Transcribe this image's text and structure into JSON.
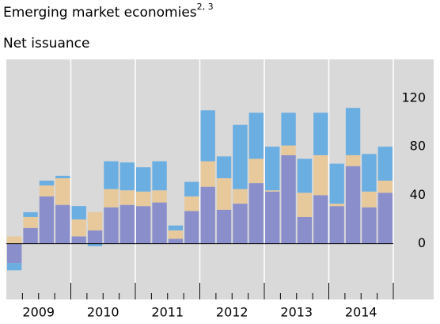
{
  "chart_data": {
    "type": "stacked_bar",
    "title": "Emerging market economies",
    "title_superscript": "2, 3",
    "subtitle": "Net issuance",
    "categories": [
      null,
      null,
      null,
      null,
      null,
      null,
      null,
      null,
      null,
      null,
      null,
      null,
      null,
      null,
      null,
      null,
      null,
      null,
      null,
      null,
      null,
      null,
      null,
      null
    ],
    "year_labels": [
      "2009",
      "2010",
      "2011",
      "2012",
      "2013",
      "2014"
    ],
    "series": [
      {
        "color": "#8a8fcb",
        "values": [
          -16,
          13,
          39,
          32,
          6,
          11,
          30,
          32,
          31,
          34,
          4,
          27,
          47,
          28,
          33,
          50,
          43,
          73,
          22,
          40,
          31,
          64,
          30,
          42
        ]
      },
      {
        "color": "#e8c99b",
        "values": [
          6,
          9,
          9,
          22,
          14,
          15,
          15,
          12,
          12,
          10,
          7,
          12,
          21,
          26,
          12,
          20,
          1,
          8,
          20,
          33,
          2,
          9,
          13,
          10
        ]
      },
      {
        "color": "#6aaee2",
        "values": [
          -6,
          4,
          4,
          2,
          11,
          -2,
          23,
          23,
          20,
          24,
          4,
          12,
          42,
          18,
          53,
          38,
          36,
          27,
          28,
          35,
          33,
          39,
          31,
          28
        ]
      }
    ],
    "ylim": [
      -46,
      152
    ],
    "yticks": [
      0,
      40,
      80,
      120
    ],
    "grid": false
  }
}
